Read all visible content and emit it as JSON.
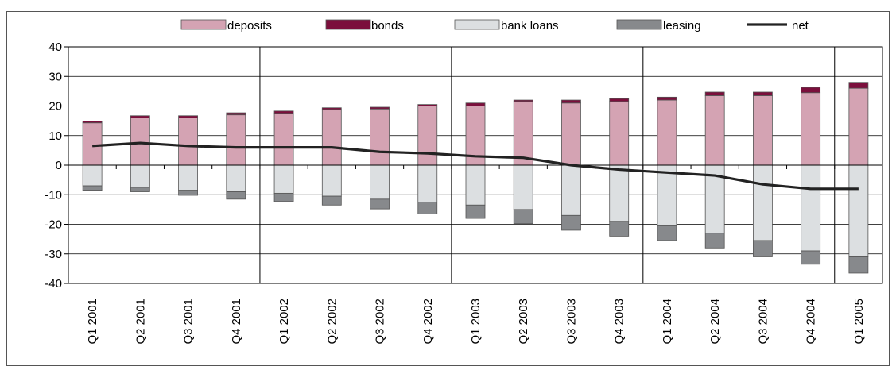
{
  "chart_data": {
    "type": "bar",
    "stacked": true,
    "categories": [
      "Q1 2001",
      "Q2 2001",
      "Q3 2001",
      "Q4 2001",
      "Q1 2002",
      "Q2 2002",
      "Q3 2002",
      "Q4 2002",
      "Q1 2003",
      "Q2 2003",
      "Q3 2003",
      "Q4 2003",
      "Q1 2004",
      "Q2 2004",
      "Q3 2004",
      "Q4 2004",
      "Q1 2005"
    ],
    "series": [
      {
        "name": "deposits",
        "kind": "bar",
        "color": "#d4a3b3",
        "values": [
          14.3,
          16.0,
          16.0,
          17.0,
          17.5,
          18.8,
          19.0,
          20.0,
          20.0,
          21.5,
          21.0,
          21.5,
          22.0,
          23.5,
          23.5,
          24.5,
          26.0
        ]
      },
      {
        "name": "bonds",
        "kind": "bar",
        "color": "#7b0f3c",
        "values": [
          0.6,
          0.7,
          0.7,
          0.7,
          0.8,
          0.6,
          0.6,
          0.5,
          1.0,
          0.5,
          1.0,
          1.0,
          1.0,
          1.2,
          1.2,
          1.8,
          2.0
        ]
      },
      {
        "name": "bank loans",
        "kind": "bar",
        "color": "#dcdfe1",
        "values": [
          -7.0,
          -7.5,
          -8.5,
          -9.0,
          -9.5,
          -10.5,
          -11.5,
          -12.5,
          -13.5,
          -15.0,
          -17.0,
          -19.0,
          -20.5,
          -23.0,
          -25.5,
          -29.0,
          -31.0
        ]
      },
      {
        "name": "leasing",
        "kind": "bar",
        "color": "#87898c",
        "values": [
          -1.5,
          -1.5,
          -1.7,
          -2.5,
          -2.8,
          -3.0,
          -3.3,
          -4.0,
          -4.5,
          -4.8,
          -5.0,
          -5.0,
          -5.0,
          -5.0,
          -5.5,
          -4.5,
          -5.5
        ]
      },
      {
        "name": "net",
        "kind": "line",
        "color": "#222222",
        "values": [
          6.5,
          7.5,
          6.5,
          6.0,
          6.0,
          6.0,
          4.5,
          4.0,
          3.0,
          2.5,
          0.0,
          -1.5,
          -2.5,
          -3.5,
          -6.5,
          -8.0,
          -8.0
        ]
      }
    ],
    "ylim": [
      -40,
      40
    ],
    "yticks": [
      40,
      30,
      20,
      10,
      0,
      -10,
      -20,
      -30,
      -40
    ],
    "ytick_labels": [
      "40",
      "30",
      "20",
      "10",
      "0",
      "-10",
      "-20",
      "-30",
      "-40"
    ],
    "grid": true,
    "year_separators_after": [
      "Q4 2001",
      "Q4 2002",
      "Q4 2003",
      "Q4 2004"
    ],
    "legend": {
      "placement": "top",
      "entries": [
        "deposits",
        "bonds",
        "bank loans",
        "leasing",
        "net"
      ]
    },
    "title": "",
    "xlabel": "",
    "ylabel": ""
  }
}
